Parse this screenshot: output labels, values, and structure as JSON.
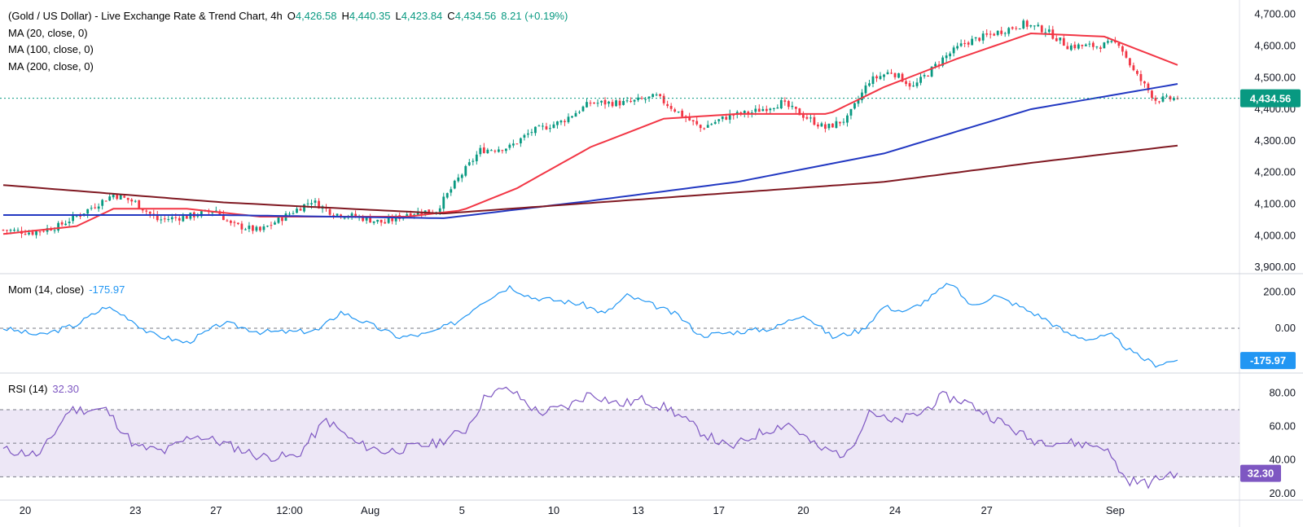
{
  "header": {
    "symbol": "(Gold / US Dollar) - Live Exchange Rate & Trend Chart, 4h",
    "o_label": "O",
    "o_value": "4,426.58",
    "h_label": "H",
    "h_value": "4,440.35",
    "l_label": "L",
    "l_value": "4,423.84",
    "c_label": "C",
    "c_value": "4,434.56",
    "change": "8.21 (+0.19%)",
    "ma20": "MA (20, close, 0)",
    "ma100": "MA (100, close, 0)",
    "ma200": "MA (200, close, 0)"
  },
  "momentum": {
    "label": "Mom (14, close)",
    "value": "-175.97"
  },
  "rsi": {
    "label": "RSI (14)",
    "value": "32.30"
  },
  "price_tag": "4,434.56",
  "colors": {
    "up": "#089981",
    "down": "#f23645",
    "ma20": "#f23645",
    "ma100": "#2238c2",
    "ma200": "#801922",
    "mom": "#2196f3",
    "rsi": "#7e57c2",
    "rsi_band": "#ede7f6",
    "last_price": "#089981"
  },
  "chart_data": [
    {
      "type": "candlestick",
      "title": "(Gold / US Dollar) - Live Exchange Rate & Trend Chart, 4h",
      "y_ticks": [
        "4,700.00",
        "4,600.00",
        "4,500.00",
        "4,400.00",
        "4,300.00",
        "4,200.00",
        "4,100.00",
        "4,000.00",
        "3,900.00"
      ],
      "ylim": [
        3895,
        4725
      ],
      "x_ticks": [
        "20",
        "23",
        "27",
        "12:00",
        "Aug",
        "5",
        "10",
        "13",
        "17",
        "20",
        "24",
        "27",
        "Sep"
      ],
      "last_price": 4434.56,
      "ohlc_anchors_close": [
        [
          0,
          4018
        ],
        [
          8,
          4010
        ],
        [
          15,
          4030
        ],
        [
          22,
          4075
        ],
        [
          30,
          4130
        ],
        [
          36,
          4105
        ],
        [
          42,
          4050
        ],
        [
          50,
          4060
        ],
        [
          58,
          4080
        ],
        [
          62,
          4035
        ],
        [
          70,
          4015
        ],
        [
          78,
          4070
        ],
        [
          84,
          4110
        ],
        [
          90,
          4070
        ],
        [
          96,
          4060
        ],
        [
          104,
          4040
        ],
        [
          110,
          4070
        ],
        [
          118,
          4080
        ],
        [
          124,
          4180
        ],
        [
          130,
          4270
        ],
        [
          138,
          4280
        ],
        [
          144,
          4330
        ],
        [
          152,
          4360
        ],
        [
          160,
          4420
        ],
        [
          170,
          4420
        ],
        [
          178,
          4440
        ],
        [
          184,
          4390
        ],
        [
          190,
          4340
        ],
        [
          198,
          4380
        ],
        [
          204,
          4390
        ],
        [
          212,
          4420
        ],
        [
          218,
          4380
        ],
        [
          224,
          4340
        ],
        [
          230,
          4370
        ],
        [
          236,
          4490
        ],
        [
          242,
          4520
        ],
        [
          248,
          4470
        ],
        [
          256,
          4560
        ],
        [
          262,
          4610
        ],
        [
          270,
          4640
        ],
        [
          278,
          4670
        ],
        [
          284,
          4650
        ],
        [
          290,
          4600
        ],
        [
          298,
          4600
        ],
        [
          304,
          4610
        ],
        [
          308,
          4520
        ],
        [
          314,
          4430
        ],
        [
          320,
          4434.56
        ]
      ],
      "series": [
        {
          "name": "MA (20, close, 0)",
          "values": [
            [
              0,
              4005
            ],
            [
              20,
              4030
            ],
            [
              30,
              4085
            ],
            [
              50,
              4085
            ],
            [
              70,
              4060
            ],
            [
              110,
              4060
            ],
            [
              125,
              4080
            ],
            [
              140,
              4150
            ],
            [
              160,
              4280
            ],
            [
              180,
              4370
            ],
            [
              200,
              4385
            ],
            [
              225,
              4385
            ],
            [
              240,
              4470
            ],
            [
              260,
              4560
            ],
            [
              280,
              4640
            ],
            [
              300,
              4630
            ],
            [
              320,
              4540
            ]
          ]
        },
        {
          "name": "MA (100, close, 0)",
          "values": [
            [
              0,
              4065
            ],
            [
              60,
              4065
            ],
            [
              120,
              4055
            ],
            [
              160,
              4110
            ],
            [
              200,
              4170
            ],
            [
              240,
              4260
            ],
            [
              280,
              4400
            ],
            [
              320,
              4480
            ]
          ]
        },
        {
          "name": "MA (200, close, 0)",
          "values": [
            [
              0,
              4160
            ],
            [
              60,
              4105
            ],
            [
              120,
              4070
            ],
            [
              180,
              4120
            ],
            [
              240,
              4170
            ],
            [
              280,
              4230
            ],
            [
              320,
              4285
            ]
          ]
        }
      ]
    },
    {
      "type": "line",
      "title": "Mom (14, close)",
      "y_ticks": [
        "200.00",
        "0.00"
      ],
      "ylim": [
        -220,
        260
      ],
      "last_value": -175.97,
      "series": [
        {
          "name": "Mom (14, close)",
          "values": [
            [
              0,
              0
            ],
            [
              10,
              -40
            ],
            [
              20,
              20
            ],
            [
              28,
              120
            ],
            [
              34,
              60
            ],
            [
              40,
              -30
            ],
            [
              50,
              -80
            ],
            [
              60,
              30
            ],
            [
              70,
              -20
            ],
            [
              80,
              -20
            ],
            [
              86,
              -10
            ],
            [
              92,
              90
            ],
            [
              100,
              20
            ],
            [
              108,
              -50
            ],
            [
              116,
              -30
            ],
            [
              124,
              40
            ],
            [
              130,
              140
            ],
            [
              138,
              230
            ],
            [
              144,
              170
            ],
            [
              152,
              150
            ],
            [
              158,
              130
            ],
            [
              164,
              80
            ],
            [
              170,
              180
            ],
            [
              178,
              120
            ],
            [
              184,
              70
            ],
            [
              190,
              -40
            ],
            [
              200,
              -20
            ],
            [
              210,
              0
            ],
            [
              218,
              80
            ],
            [
              226,
              -50
            ],
            [
              234,
              -10
            ],
            [
              240,
              120
            ],
            [
              246,
              90
            ],
            [
              252,
              160
            ],
            [
              258,
              250
            ],
            [
              264,
              120
            ],
            [
              270,
              180
            ],
            [
              276,
              130
            ],
            [
              284,
              50
            ],
            [
              290,
              -30
            ],
            [
              296,
              -60
            ],
            [
              302,
              -40
            ],
            [
              308,
              -140
            ],
            [
              314,
              -200
            ],
            [
              320,
              -175.97
            ]
          ]
        }
      ]
    },
    {
      "type": "line",
      "title": "RSI (14)",
      "y_ticks": [
        "80.00",
        "60.00",
        "40.00",
        "20.00"
      ],
      "ylim": [
        18,
        88
      ],
      "band": [
        30,
        70
      ],
      "midline": 50,
      "last_value": 32.3,
      "series": [
        {
          "name": "RSI (14)",
          "values": [
            [
              0,
              46
            ],
            [
              10,
              43
            ],
            [
              18,
              70
            ],
            [
              28,
              70
            ],
            [
              36,
              48
            ],
            [
              44,
              45
            ],
            [
              52,
              55
            ],
            [
              60,
              50
            ],
            [
              70,
              42
            ],
            [
              80,
              42
            ],
            [
              88,
              64
            ],
            [
              96,
              50
            ],
            [
              104,
              45
            ],
            [
              110,
              47
            ],
            [
              118,
              50
            ],
            [
              126,
              58
            ],
            [
              132,
              80
            ],
            [
              138,
              82
            ],
            [
              146,
              68
            ],
            [
              154,
              72
            ],
            [
              160,
              80
            ],
            [
              168,
              73
            ],
            [
              174,
              76
            ],
            [
              182,
              70
            ],
            [
              190,
              57
            ],
            [
              198,
              47
            ],
            [
              206,
              56
            ],
            [
              214,
              62
            ],
            [
              222,
              47
            ],
            [
              230,
              43
            ],
            [
              236,
              70
            ],
            [
              242,
              62
            ],
            [
              250,
              68
            ],
            [
              256,
              78
            ],
            [
              262,
              75
            ],
            [
              270,
              65
            ],
            [
              280,
              52
            ],
            [
              292,
              50
            ],
            [
              300,
              48
            ],
            [
              306,
              28
            ],
            [
              312,
              26
            ],
            [
              318,
              32
            ],
            [
              320,
              32.3
            ]
          ]
        }
      ]
    }
  ]
}
